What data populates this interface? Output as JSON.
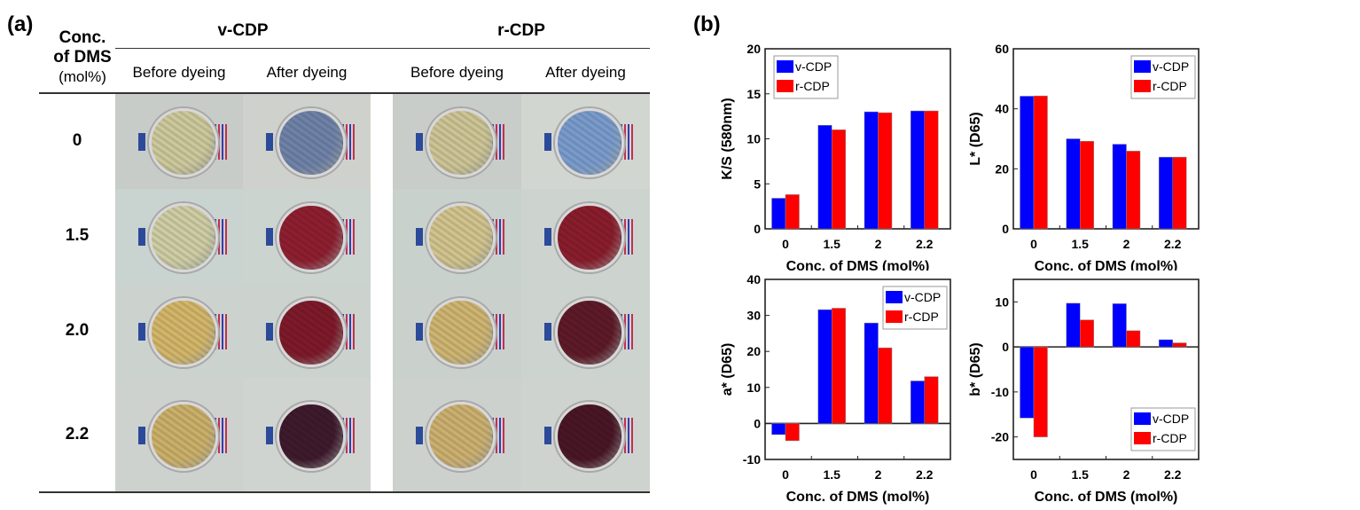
{
  "panel_a": {
    "label": "(a)",
    "row_header": [
      "Conc.",
      "of DMS",
      "(mol%)"
    ],
    "groups": [
      "v-CDP",
      "r-CDP"
    ],
    "subheaders": [
      "Before dyeing",
      "After dyeing",
      "Before dyeing",
      "After dyeing"
    ],
    "rows": [
      {
        "label": "0",
        "colors": [
          "#cdc99c",
          "#6f82a8",
          "#cdc596",
          "#7a9ccc"
        ],
        "bg": [
          "#c8ccc8",
          "#cfd2cc",
          "#c9cdc9",
          "#d2d6d0"
        ]
      },
      {
        "label": "1.5",
        "colors": [
          "#cfcda4",
          "#8e1f30",
          "#d2c48e",
          "#8a1d2c"
        ],
        "bg": [
          "#c9d3cf",
          "#ccd4d0",
          "#c9d1cc",
          "#cdd4cf"
        ]
      },
      {
        "label": "2.0",
        "colors": [
          "#d3b66a",
          "#7e1a2a",
          "#cfb572",
          "#5e1a28"
        ],
        "bg": [
          "#ccd3cf",
          "#ccd3cf",
          "#cad1cd",
          "#cdd3cf"
        ]
      },
      {
        "label": "2.2",
        "colors": [
          "#cbb06a",
          "#3e1a2c",
          "#ccb070",
          "#4a1626"
        ],
        "bg": [
          "#cdd2cf",
          "#cfd4d0",
          "#ccd1cd",
          "#ced3cf"
        ]
      }
    ]
  },
  "panel_b": {
    "label": "(b)"
  },
  "colors": {
    "v": "#0000ff",
    "r": "#ff0000"
  },
  "chart_data": [
    {
      "type": "bar",
      "ylabel": "K/S (580nm)",
      "xlabel": "Conc. of DMS (mol%)",
      "categories": [
        "0",
        "1.5",
        "2",
        "2.2"
      ],
      "ylim": [
        0,
        20
      ],
      "yticks": [
        0,
        5,
        10,
        15,
        20
      ],
      "legend": "top-left",
      "series": [
        {
          "name": "v-CDP",
          "values": [
            3.4,
            11.5,
            13.0,
            13.1
          ]
        },
        {
          "name": "r-CDP",
          "values": [
            3.8,
            11.0,
            12.9,
            13.1
          ]
        }
      ]
    },
    {
      "type": "bar",
      "ylabel": "L* (D65)",
      "xlabel": "Conc. of DMS (mol%)",
      "categories": [
        "0",
        "1.5",
        "2",
        "2.2"
      ],
      "ylim": [
        0,
        60
      ],
      "yticks": [
        0,
        20,
        40,
        60
      ],
      "legend": "top-right",
      "series": [
        {
          "name": "v-CDP",
          "values": [
            44.2,
            30.0,
            28.2,
            23.9
          ]
        },
        {
          "name": "r-CDP",
          "values": [
            44.3,
            29.2,
            25.9,
            23.9
          ]
        }
      ]
    },
    {
      "type": "bar",
      "ylabel": "a* (D65)",
      "xlabel": "Conc. of DMS (mol%)",
      "categories": [
        "0",
        "1.5",
        "2",
        "2.2"
      ],
      "ylim": [
        -10,
        40
      ],
      "yticks": [
        -10,
        0,
        10,
        20,
        30,
        40
      ],
      "legend": "top-right",
      "series": [
        {
          "name": "v-CDP",
          "values": [
            -3.1,
            31.6,
            27.9,
            11.8
          ]
        },
        {
          "name": "r-CDP",
          "values": [
            -4.8,
            32.0,
            21.0,
            13.0
          ]
        }
      ]
    },
    {
      "type": "bar",
      "ylabel": "b* (D65)",
      "xlabel": "Conc. of DMS (mol%)",
      "categories": [
        "0",
        "1.5",
        "2",
        "2.2"
      ],
      "ylim": [
        -25,
        15
      ],
      "yticks": [
        -20,
        -10,
        0,
        10
      ],
      "legend": "bottom-right",
      "series": [
        {
          "name": "v-CDP",
          "values": [
            -15.8,
            9.7,
            9.6,
            1.6
          ]
        },
        {
          "name": "r-CDP",
          "values": [
            -20.0,
            6.0,
            3.6,
            0.9
          ]
        }
      ]
    }
  ]
}
